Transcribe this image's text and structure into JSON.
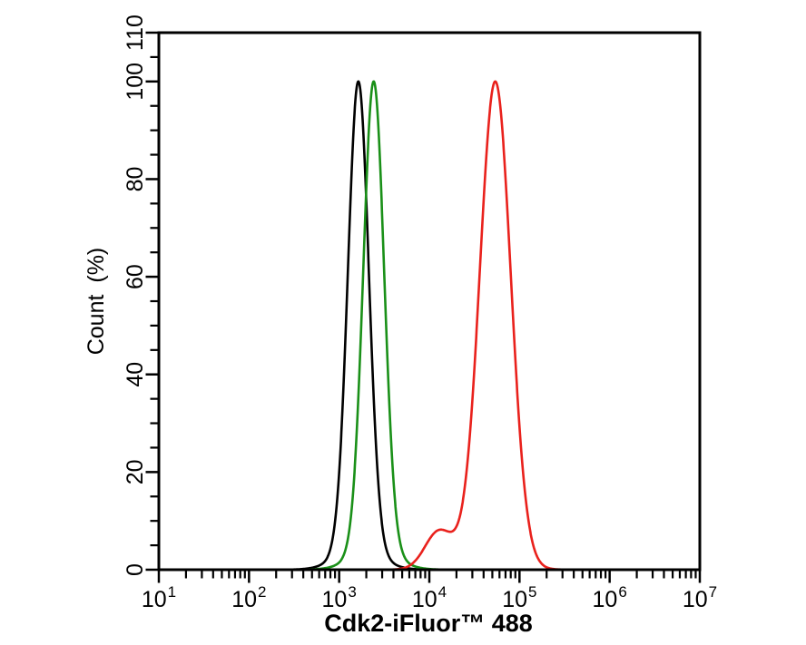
{
  "figure": {
    "background_color": "#ffffff",
    "axis_color": "#000000",
    "x_axis": {
      "label": "Cdk2-iFluor™ 488",
      "scale": "log10",
      "tick_label_base": "10",
      "decade_exponents": [
        1,
        2,
        3,
        4,
        5,
        6,
        7
      ],
      "minor_tick_multiples": [
        2,
        3,
        4,
        5,
        6,
        7,
        8,
        9
      ]
    },
    "y_axis": {
      "label": "Count (%)",
      "min": 0,
      "max": 110,
      "labeled_ticks": [
        0,
        20,
        40,
        60,
        80,
        100,
        110
      ],
      "minor_tick_step": 5
    }
  },
  "chart_data": {
    "type": "line",
    "variant": "flow-cytometry-overlay-histogram",
    "title": "",
    "xlabel": "Cdk2-iFluor™ 488",
    "ylabel": "Count (%)",
    "x_scale": "log10",
    "xlim": [
      10,
      10000000
    ],
    "ylim": [
      0,
      110
    ],
    "grid": false,
    "legend": false,
    "series": [
      {
        "name": "black-curve",
        "color": "#000000",
        "peak": {
          "x": 1640,
          "y": 100
        },
        "log10_components": [
          {
            "center": 3.213,
            "sigma": 0.115,
            "amplitude": 96
          },
          {
            "center": 3.213,
            "sigma": 0.24,
            "amplitude": 4
          }
        ]
      },
      {
        "name": "green-curve",
        "color": "#1a9018",
        "peak": {
          "x": 2410,
          "y": 100
        },
        "log10_components": [
          {
            "center": 3.383,
            "sigma": 0.115,
            "amplitude": 96
          },
          {
            "center": 3.383,
            "sigma": 0.24,
            "amplitude": 4
          }
        ]
      },
      {
        "name": "red-curve",
        "color": "#e9211c",
        "peak": {
          "x": 54000,
          "y": 100
        },
        "log10_components": [
          {
            "center": 4.733,
            "sigma": 0.17,
            "amplitude": 97
          },
          {
            "center": 4.1,
            "sigma": 0.15,
            "amplitude": 7
          },
          {
            "center": 4.55,
            "sigma": 0.3,
            "amplitude": 3
          }
        ]
      }
    ]
  }
}
